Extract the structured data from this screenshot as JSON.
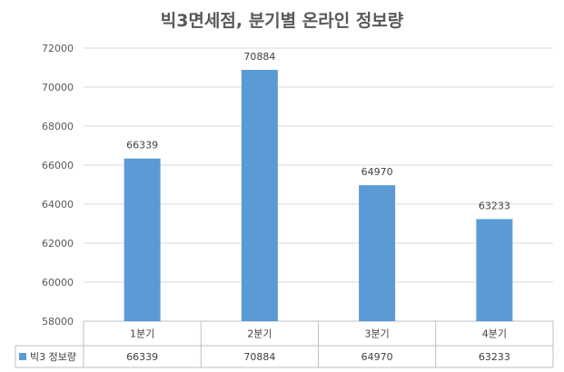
{
  "chart_data": {
    "type": "bar",
    "title": "빅3면세점, 분기별 온라인 정보량",
    "categories": [
      "1분기",
      "2분기",
      "3분기",
      "4분기"
    ],
    "series": [
      {
        "name": "빅3 정보량",
        "values": [
          66339,
          70884,
          64970,
          63233
        ],
        "color": "#5b9bd5"
      }
    ],
    "ylim": [
      58000,
      72000
    ],
    "yticks": [
      58000,
      60000,
      62000,
      64000,
      66000,
      68000,
      70000,
      72000
    ],
    "grid": true,
    "legend": "data-table",
    "data_table": true
  }
}
